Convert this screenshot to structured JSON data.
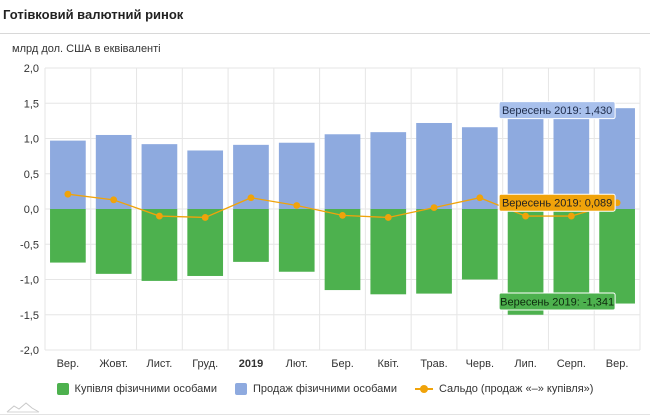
{
  "header": {
    "title": "Готівковий валютний ринок"
  },
  "colors": {
    "purchase": "#4db14e",
    "sale": "#8eaadf",
    "saldo": "#f0a30a",
    "grid": "#e6e6e6",
    "tooltip_sale_bg": "#a8c0ec",
    "tooltip_saldo_bg": "#f0a30a",
    "tooltip_purchase_bg": "#4db14e"
  },
  "chart_data": {
    "type": "bar",
    "title": "Готівковий валютний ринок",
    "ylabel": "млрд дол. США в еквіваленті",
    "xlabel": "",
    "ylim": [
      -2.0,
      2.0
    ],
    "y_ticks": [
      "2,0",
      "1,5",
      "1,0",
      "0,5",
      "0,0",
      "-0,5",
      "-1,0",
      "-1,5",
      "-2,0"
    ],
    "y_tick_values": [
      2.0,
      1.5,
      1.0,
      0.5,
      0.0,
      -0.5,
      -1.0,
      -1.5,
      -2.0
    ],
    "categories": [
      "Вер.",
      "Жовт.",
      "Лист.",
      "Груд.",
      "2019",
      "Лют.",
      "Бер.",
      "Квіт.",
      "Трав.",
      "Черв.",
      "Лип.",
      "Серп.",
      "Вер."
    ],
    "bold_categories": [
      "2019"
    ],
    "grid": true,
    "legend_position": "bottom",
    "series": [
      {
        "name": "Купівля фізичними особами",
        "type": "bar",
        "color_key": "purchase",
        "values": [
          -0.76,
          -0.92,
          -1.02,
          -0.95,
          -0.75,
          -0.89,
          -1.15,
          -1.21,
          -1.2,
          -1.0,
          -1.5,
          -1.33,
          -1.341
        ]
      },
      {
        "name": "Продаж фізичними особами",
        "type": "bar",
        "color_key": "sale",
        "values": [
          0.97,
          1.05,
          0.92,
          0.83,
          0.91,
          0.94,
          1.06,
          1.09,
          1.22,
          1.16,
          1.4,
          1.4,
          1.43
        ]
      },
      {
        "name": "Сальдо (продаж «–» купівля»)",
        "type": "line",
        "color_key": "saldo",
        "values": [
          0.21,
          0.13,
          -0.1,
          -0.12,
          0.16,
          0.05,
          -0.09,
          -0.12,
          0.02,
          0.16,
          -0.1,
          -0.1,
          0.089
        ]
      }
    ],
    "tooltips": [
      {
        "series": 1,
        "label": "Вересень 2019: 1,430",
        "bg_key": "tooltip_sale_bg",
        "text_color": "#1d2b4a"
      },
      {
        "series": 2,
        "label": "Вересень 2019: 0,089",
        "bg_key": "tooltip_saldo_bg",
        "text_color": "#222222"
      },
      {
        "series": 0,
        "label": "Вересень 2019: -1,341",
        "bg_key": "tooltip_purchase_bg",
        "text_color": "#0e2a0e"
      }
    ]
  }
}
